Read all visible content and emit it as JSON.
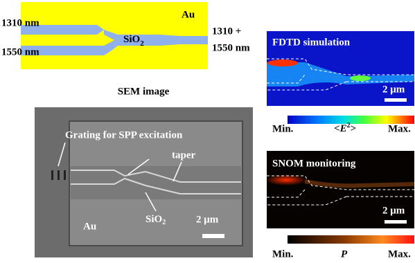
{
  "schematic": {
    "metal": "Au",
    "input_top": "1310 nm",
    "input_bottom": "1550 nm",
    "core": {
      "base": "SiO",
      "sub": "2"
    },
    "output_line1": "1310 +",
    "output_line2": "1550 nm"
  },
  "sem": {
    "title": "SEM image",
    "grating_label": "Grating  for SPP excitation",
    "taper_label": "taper",
    "core": {
      "base": "SiO",
      "sub": "2"
    },
    "scale": "2 μm",
    "metal": "Au"
  },
  "fdtd": {
    "title": "FDTD simulation",
    "scale": "2 μm",
    "min": "Min.",
    "quantity": {
      "open": "<",
      "base": "E",
      "sup": "2",
      "close": ">"
    },
    "max": "Max."
  },
  "snom": {
    "title": "SNOM monitoring",
    "scale": "2 μm",
    "min": "Min.",
    "quantity": "P",
    "max": "Max."
  }
}
